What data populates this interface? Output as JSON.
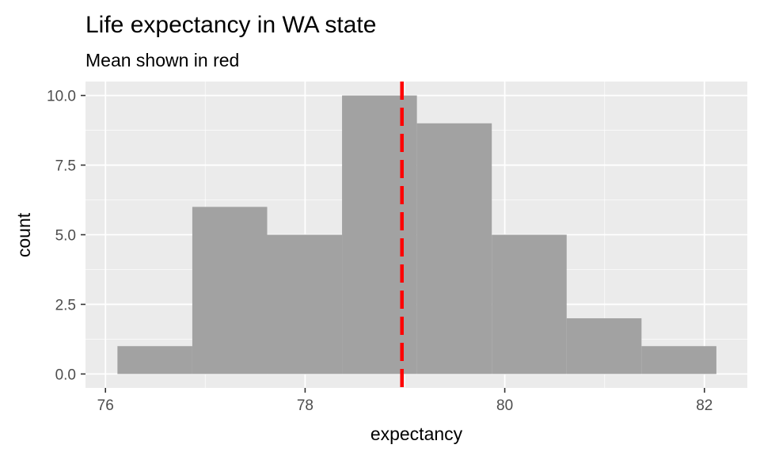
{
  "chart_data": {
    "type": "histogram",
    "title": "Life expectancy in WA state",
    "subtitle": "Mean shown in red",
    "xlabel": "expectancy",
    "ylabel": "count",
    "xlim": [
      75.8,
      82.43
    ],
    "ylim": [
      -0.5,
      10.5
    ],
    "x_ticks": [
      76,
      78,
      80,
      82
    ],
    "x_tick_labels": [
      "76",
      "78",
      "80",
      "82"
    ],
    "y_ticks": [
      0,
      2.5,
      5,
      7.5,
      10
    ],
    "y_tick_labels": [
      "0.0",
      "2.5",
      "5.0",
      "7.5",
      "10.0"
    ],
    "bins": [
      {
        "x0": 76.12,
        "x1": 76.87,
        "count": 1
      },
      {
        "x0": 76.87,
        "x1": 77.62,
        "count": 6
      },
      {
        "x0": 77.62,
        "x1": 78.37,
        "count": 5
      },
      {
        "x0": 78.37,
        "x1": 79.12,
        "count": 10
      },
      {
        "x0": 79.12,
        "x1": 79.87,
        "count": 9
      },
      {
        "x0": 79.87,
        "x1": 80.62,
        "count": 5
      },
      {
        "x0": 80.62,
        "x1": 81.37,
        "count": 2
      },
      {
        "x0": 81.37,
        "x1": 82.12,
        "count": 1
      }
    ],
    "mean": 78.97,
    "grid": true,
    "colors": {
      "panel_background": "#ebebeb",
      "grid_major": "#ffffff",
      "bar_fill": "#a2a2a2",
      "mean_line": "#ff0000"
    }
  }
}
